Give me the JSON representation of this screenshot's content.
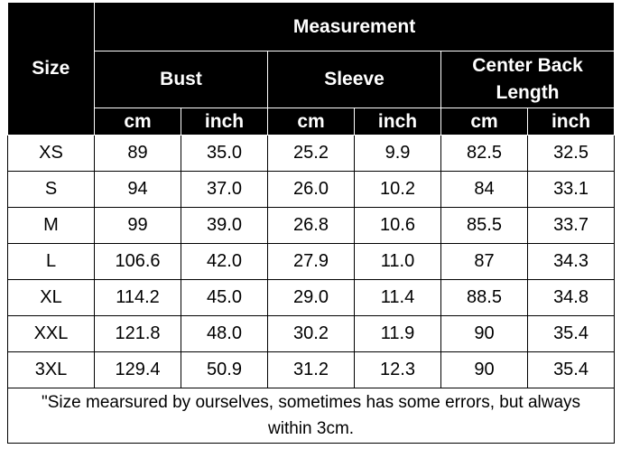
{
  "header": {
    "size": "Size",
    "measurement": "Measurement",
    "groups": [
      "Bust",
      "Sleeve",
      "Center Back Length"
    ],
    "units": [
      "cm",
      "inch",
      "cm",
      "inch",
      "cm",
      "inch"
    ]
  },
  "table": {
    "rows": [
      [
        "XS",
        "89",
        "35.0",
        "25.2",
        "9.9",
        "82.5",
        "32.5"
      ],
      [
        "S",
        "94",
        "37.0",
        "26.0",
        "10.2",
        "84",
        "33.1"
      ],
      [
        "M",
        "99",
        "39.0",
        "26.8",
        "10.6",
        "85.5",
        "33.7"
      ],
      [
        "L",
        "106.6",
        "42.0",
        "27.9",
        "11.0",
        "87",
        "34.3"
      ],
      [
        "XL",
        "114.2",
        "45.0",
        "29.0",
        "11.4",
        "88.5",
        "34.8"
      ],
      [
        "XXL",
        "121.8",
        "48.0",
        "30.2",
        "11.9",
        "90",
        "35.4"
      ],
      [
        "3XL",
        "129.4",
        "50.9",
        "31.2",
        "12.3",
        "90",
        "35.4"
      ]
    ]
  },
  "note": "\"Size mearsured by ourselves, sometimes has some errors, but always within 3cm."
}
